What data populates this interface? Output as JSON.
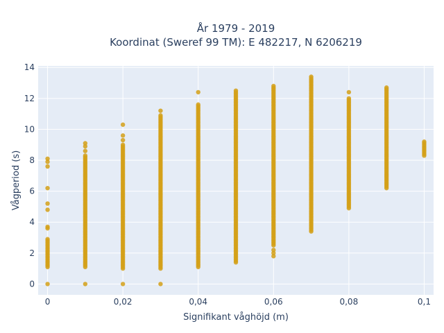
{
  "chart_data": {
    "type": "scatter",
    "title_line1": "År 1979 - 2019",
    "title_line2": "Koordinat (Sweref 99 TM): E 482217, N 6206219",
    "xlabel": "Signifikant våghöjd (m)",
    "ylabel": "Vågperiod (s)",
    "xlim": [
      -0.0025,
      0.1025
    ],
    "ylim": [
      -0.7,
      14.1
    ],
    "xticks": [
      0,
      0.02,
      0.04,
      0.06,
      0.08,
      0.1
    ],
    "xtick_labels": [
      "0",
      "0,02",
      "0,04",
      "0,06",
      "0,08",
      "0,1"
    ],
    "yticks": [
      0,
      2,
      4,
      6,
      8,
      10,
      12,
      14
    ],
    "ytick_labels": [
      "0",
      "2",
      "4",
      "6",
      "8",
      "10",
      "12",
      "14"
    ],
    "grid": true,
    "marker_color": "#d4a017",
    "plot_background": "#e5ecf6",
    "columns": [
      {
        "x": 0.0,
        "ymin": 1.1,
        "ymax": 2.9,
        "extra": [
          0,
          3.6,
          3.7,
          4.8,
          5.2,
          6.2,
          7.6,
          7.9,
          8.1
        ]
      },
      {
        "x": 0.01,
        "ymin": 1.1,
        "ymax": 8.3,
        "extra": [
          0,
          8.6,
          8.9,
          9.1
        ]
      },
      {
        "x": 0.02,
        "ymin": 1.0,
        "ymax": 9.0,
        "extra": [
          0,
          9.3,
          9.6,
          10.3
        ]
      },
      {
        "x": 0.03,
        "ymin": 1.0,
        "ymax": 10.9,
        "extra": [
          0,
          11.2
        ]
      },
      {
        "x": 0.04,
        "ymin": 1.1,
        "ymax": 11.6,
        "extra": [
          12.4
        ]
      },
      {
        "x": 0.05,
        "ymin": 1.4,
        "ymax": 12.5,
        "extra": []
      },
      {
        "x": 0.06,
        "ymin": 2.5,
        "ymax": 12.8,
        "extra": [
          1.8,
          2.0,
          2.2
        ]
      },
      {
        "x": 0.07,
        "ymin": 3.4,
        "ymax": 13.4,
        "extra": []
      },
      {
        "x": 0.08,
        "ymin": 4.9,
        "ymax": 12.0,
        "extra": [
          12.4
        ]
      },
      {
        "x": 0.09,
        "ymin": 6.2,
        "ymax": 12.7,
        "extra": []
      },
      {
        "x": 0.1,
        "ymin": 8.3,
        "ymax": 9.2,
        "extra": []
      }
    ]
  }
}
